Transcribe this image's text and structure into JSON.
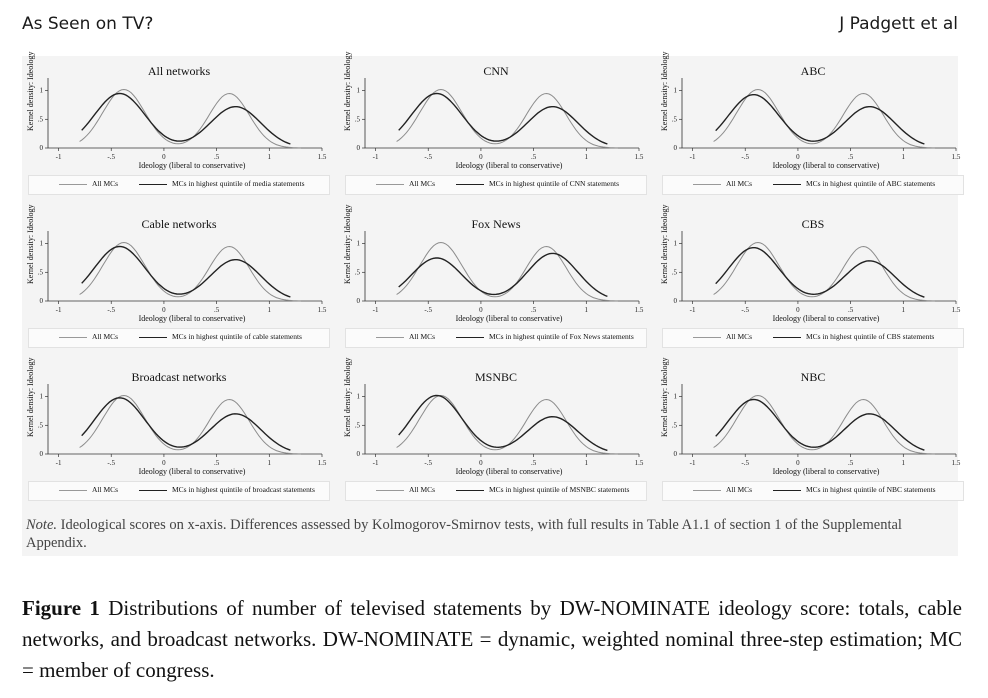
{
  "header": {
    "left": "As Seen on TV?",
    "right": "J Padgett et al"
  },
  "figure": {
    "ylabel": "Kernel density: Ideology",
    "xlabel": "Ideology (liberal to conservative)",
    "xticks": [
      "-1",
      "-.5",
      "0",
      ".5",
      "1",
      "1.5"
    ],
    "yticks": [
      "0",
      ".5",
      "1"
    ],
    "legend_all": "All MCs",
    "note_label": "Note.",
    "note_text": " Ideological scores on x-axis. Differences assessed by Kolmogorov-Smirnov tests, with full results in Table A1.1 of section 1 of the Supplemental Appendix.",
    "panels": [
      {
        "title": "All networks",
        "legend_highest": "MCs in highest quintile of media statements",
        "peak_left": 0.95,
        "peak_right": 0.72
      },
      {
        "title": "CNN",
        "legend_highest": "MCs in highest quintile of CNN statements",
        "peak_left": 0.95,
        "peak_right": 0.72
      },
      {
        "title": "ABC",
        "legend_highest": "MCs in highest quintile of ABC statements",
        "peak_left": 0.93,
        "peak_right": 0.72
      },
      {
        "title": "Cable networks",
        "legend_highest": "MCs in highest quintile of cable statements",
        "peak_left": 0.95,
        "peak_right": 0.72
      },
      {
        "title": "Fox News",
        "legend_highest": "MCs in highest quintile of Fox News statements",
        "peak_left": 0.75,
        "peak_right": 0.83
      },
      {
        "title": "CBS",
        "legend_highest": "MCs in highest quintile of CBS statements",
        "peak_left": 0.93,
        "peak_right": 0.7
      },
      {
        "title": "Broadcast networks",
        "legend_highest": "MCs in highest quintile of broadcast statements",
        "peak_left": 0.98,
        "peak_right": 0.7
      },
      {
        "title": "MSNBC",
        "legend_highest": "MCs in highest quintile of MSNBC statements",
        "peak_left": 1.02,
        "peak_right": 0.65
      },
      {
        "title": "NBC",
        "legend_highest": "MCs in highest quintile of NBC statements",
        "peak_left": 0.95,
        "peak_right": 0.7
      }
    ]
  },
  "caption": {
    "label": "Figure 1",
    "text": " Distributions of number of televised statements by DW-NOMINATE ideology score: totals, cable networks, and broadcast networks. DW-NOMINATE = dynamic, weighted nominal three-step estimation; MC = member of congress."
  }
}
